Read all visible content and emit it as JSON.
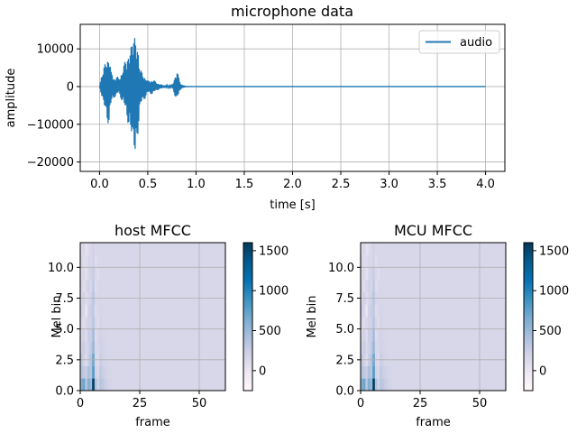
{
  "chart_data": [
    {
      "type": "line",
      "title": "microphone data",
      "xlabel": "time [s]",
      "ylabel": "amplitude",
      "xlim": [
        -0.2,
        4.2
      ],
      "ylim": [
        -22500,
        16500
      ],
      "xticks": [
        0.0,
        0.5,
        1.0,
        1.5,
        2.0,
        2.5,
        3.0,
        3.5,
        4.0
      ],
      "xtick_labels": [
        "0.0",
        "0.5",
        "1.0",
        "1.5",
        "2.0",
        "2.5",
        "3.0",
        "3.5",
        "4.0"
      ],
      "yticks": [
        10000,
        0,
        -10000,
        -20000
      ],
      "ytick_labels": [
        "10000",
        "0",
        "−10000",
        "−20000"
      ],
      "grid": true,
      "legend": {
        "position": "top-right",
        "entries": [
          "audio"
        ]
      },
      "series": [
        {
          "name": "audio",
          "color": "#1f77b4",
          "envelope": {
            "t": [
              0.0,
              0.02,
              0.05,
              0.08,
              0.1,
              0.12,
              0.15,
              0.18,
              0.2,
              0.25,
              0.3,
              0.33,
              0.35,
              0.37,
              0.4,
              0.42,
              0.45,
              0.48,
              0.5,
              0.55,
              0.6,
              0.65,
              0.7,
              0.75,
              0.8,
              0.84,
              0.86,
              0.88,
              0.9,
              1.0,
              4.0
            ],
            "max": [
              200,
              3000,
              6000,
              8500,
              9000,
              4000,
              2500,
              3000,
              2000,
              6000,
              9500,
              12000,
              15000,
              14500,
              11000,
              5000,
              3500,
              2500,
              1500,
              2000,
              1000,
              500,
              300,
              200,
              4500,
              1000,
              200,
              100,
              50,
              0,
              0
            ],
            "min": [
              -200,
              -2500,
              -6000,
              -9500,
              -11000,
              -5000,
              -3000,
              -2500,
              -2000,
              -5000,
              -11000,
              -14000,
              -17000,
              -20500,
              -13000,
              -6000,
              -4000,
              -3000,
              -2000,
              -2000,
              -1000,
              -500,
              -300,
              -200,
              -4000,
              -800,
              -200,
              -100,
              -50,
              0,
              0
            ]
          }
        }
      ]
    },
    {
      "type": "heatmap",
      "title": "host MFCC",
      "xlabel": "frame",
      "ylabel": "Mel bin",
      "xlim": [
        0,
        61
      ],
      "ylim": [
        0,
        12
      ],
      "xticks": [
        0,
        25,
        50
      ],
      "xtick_labels": [
        "0",
        "25",
        "50"
      ],
      "yticks": [
        0.0,
        2.5,
        5.0,
        7.5,
        10.0
      ],
      "ytick_labels": [
        "0.0",
        "2.5",
        "5.0",
        "7.5",
        "10.0"
      ],
      "grid": true,
      "colormap": "PuBu",
      "colorbar": {
        "min": -250,
        "max": 1600,
        "ticks": [
          0,
          500,
          1000,
          1500
        ],
        "tick_labels": [
          "0",
          "500",
          "1000",
          "1500"
        ]
      },
      "background_value": 150,
      "active_frames": 13,
      "rows": [
        [
          600,
          700,
          350,
          600,
          500,
          1550,
          400,
          200,
          350,
          300,
          250,
          200,
          180
        ],
        [
          350,
          300,
          250,
          400,
          350,
          800,
          200,
          150,
          300,
          250,
          200,
          180,
          160
        ],
        [
          300,
          200,
          100,
          250,
          350,
          700,
          150,
          100,
          250,
          200,
          170,
          160,
          150
        ],
        [
          200,
          250,
          150,
          200,
          300,
          500,
          150,
          150,
          200,
          180,
          160,
          150,
          150
        ],
        [
          150,
          200,
          100,
          250,
          250,
          450,
          100,
          150,
          200,
          170,
          160,
          150,
          150
        ],
        [
          150,
          100,
          150,
          200,
          200,
          350,
          150,
          100,
          180,
          160,
          150,
          150,
          150
        ],
        [
          200,
          150,
          0,
          200,
          250,
          300,
          100,
          150,
          170,
          160,
          150,
          150,
          150
        ],
        [
          150,
          200,
          100,
          150,
          200,
          350,
          150,
          150,
          160,
          150,
          150,
          150,
          150
        ],
        [
          150,
          100,
          150,
          200,
          150,
          300,
          100,
          150,
          160,
          150,
          150,
          150,
          150
        ],
        [
          100,
          150,
          50,
          150,
          200,
          250,
          150,
          100,
          150,
          150,
          150,
          150,
          150
        ],
        [
          150,
          100,
          100,
          150,
          150,
          200,
          100,
          150,
          150,
          150,
          150,
          150,
          150
        ],
        [
          100,
          150,
          50,
          100,
          150,
          200,
          150,
          150,
          150,
          150,
          150,
          150,
          150
        ]
      ]
    },
    {
      "type": "heatmap",
      "title": "MCU MFCC",
      "xlabel": "frame",
      "ylabel": "Mel bin",
      "xlim": [
        0,
        61
      ],
      "ylim": [
        0,
        12
      ],
      "xticks": [
        0,
        25,
        50
      ],
      "xtick_labels": [
        "0",
        "25",
        "50"
      ],
      "yticks": [
        0.0,
        2.5,
        5.0,
        7.5,
        10.0
      ],
      "ytick_labels": [
        "0.0",
        "2.5",
        "5.0",
        "7.5",
        "10.0"
      ],
      "grid": true,
      "colormap": "PuBu",
      "colorbar": {
        "min": -250,
        "max": 1600,
        "ticks": [
          0,
          500,
          1000,
          1500
        ],
        "tick_labels": [
          "0",
          "500",
          "1000",
          "1500"
        ]
      },
      "background_value": 150,
      "active_frames": 13,
      "rows": [
        [
          600,
          700,
          350,
          600,
          500,
          1550,
          400,
          200,
          350,
          300,
          250,
          200,
          180
        ],
        [
          350,
          300,
          250,
          400,
          350,
          800,
          200,
          150,
          300,
          250,
          200,
          180,
          160
        ],
        [
          300,
          200,
          100,
          250,
          350,
          700,
          150,
          100,
          250,
          200,
          170,
          160,
          150
        ],
        [
          200,
          250,
          150,
          200,
          300,
          500,
          150,
          150,
          200,
          180,
          160,
          150,
          150
        ],
        [
          150,
          200,
          100,
          250,
          250,
          450,
          100,
          150,
          200,
          170,
          160,
          150,
          150
        ],
        [
          150,
          100,
          150,
          200,
          200,
          350,
          150,
          100,
          180,
          160,
          150,
          150,
          150
        ],
        [
          200,
          150,
          0,
          200,
          250,
          300,
          100,
          150,
          170,
          160,
          150,
          150,
          150
        ],
        [
          150,
          200,
          100,
          150,
          200,
          350,
          150,
          150,
          160,
          150,
          150,
          150,
          150
        ],
        [
          150,
          100,
          150,
          200,
          150,
          300,
          100,
          150,
          160,
          150,
          150,
          150,
          150
        ],
        [
          100,
          150,
          50,
          150,
          200,
          250,
          150,
          100,
          150,
          150,
          150,
          150,
          150
        ],
        [
          150,
          100,
          100,
          150,
          150,
          200,
          100,
          150,
          150,
          150,
          150,
          150,
          150
        ],
        [
          100,
          150,
          50,
          100,
          150,
          200,
          150,
          150,
          150,
          150,
          150,
          150,
          150
        ]
      ]
    }
  ]
}
